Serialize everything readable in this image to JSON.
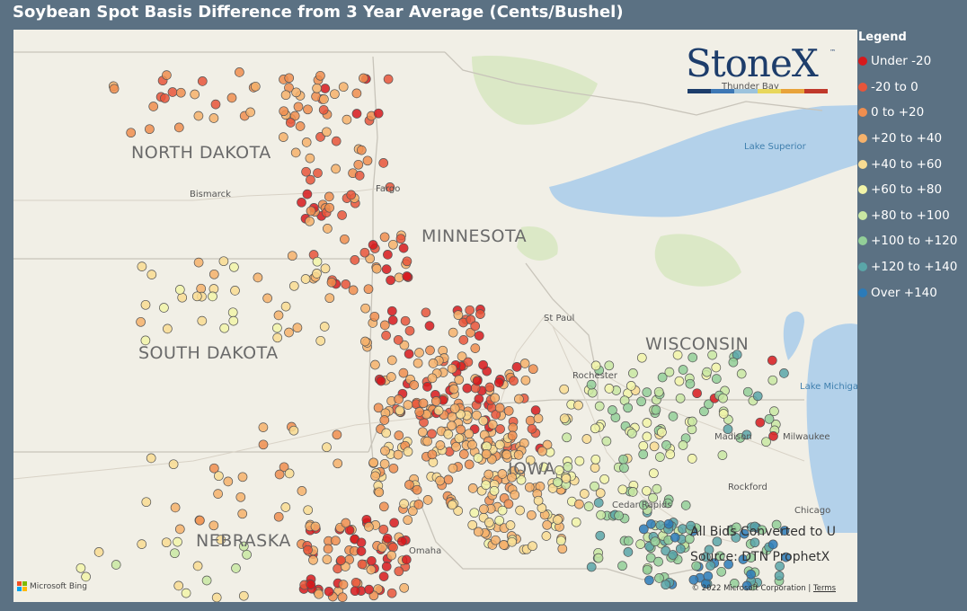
{
  "title": "Soybean Spot Basis Difference from 3 Year Average (Cents/Bushel)",
  "legend": {
    "title": "Legend",
    "items": [
      {
        "label": "Under -20",
        "color": "#d7191c"
      },
      {
        "label": "-20 to 0",
        "color": "#e8553a"
      },
      {
        "label": "0 to +20",
        "color": "#f08e4f"
      },
      {
        "label": "+20 to +40",
        "color": "#f6b26b"
      },
      {
        "label": "+40 to +60",
        "color": "#f9dc92"
      },
      {
        "label": "+60 to +80",
        "color": "#f2f4a8"
      },
      {
        "label": "+80 to +100",
        "color": "#c9e7a2"
      },
      {
        "label": "+100 to +120",
        "color": "#93cf98"
      },
      {
        "label": "+120 to +140",
        "color": "#5aa6a8"
      },
      {
        "label": "Over +140",
        "color": "#2b7bb9"
      }
    ]
  },
  "logo": {
    "text": "StoneX",
    "tm": "™",
    "bar_colors": [
      "#1d3d6b",
      "#3e78b5",
      "#9cc3dd",
      "#e8d75b",
      "#e8a33a",
      "#c0392b"
    ]
  },
  "map": {
    "state_labels": [
      "NORTH DAKOTA",
      "MINNESOTA",
      "SOUTH DAKOTA",
      "WISCONSIN",
      "NEBRASKA",
      "IOWA"
    ],
    "city_labels": [
      "Bismarck",
      "Fargo",
      "St Paul",
      "Rochester",
      "Madison",
      "Milwaukee",
      "Rockford",
      "Chicago",
      "Omaha",
      "Cedar Rapids",
      "Thunder Bay"
    ],
    "water_labels": [
      "Lake Superior",
      "Lake Michigan"
    ],
    "colors": {
      "land": "#f1efe6",
      "water": "#b3d1ea",
      "park": "#dbe8c6",
      "border": "#c8c4ba"
    }
  },
  "notes": {
    "line1": "All Bids Converted to U",
    "line2": "Source: DTN ProphetX"
  },
  "attribution": {
    "bing": "Microsoft Bing",
    "copyright": "© 2022 Microsoft Corporation",
    "terms": "Terms"
  }
}
